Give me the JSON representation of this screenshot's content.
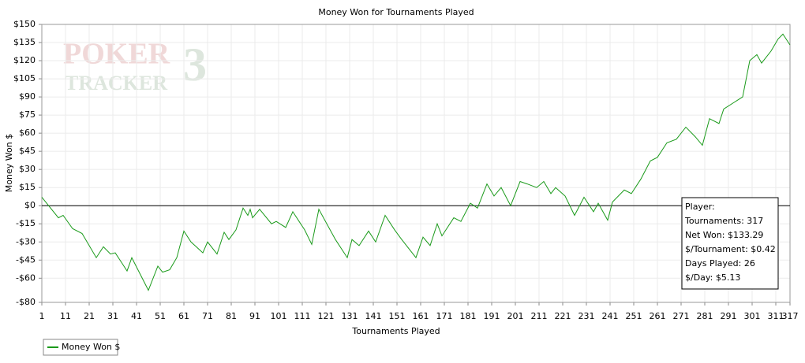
{
  "chart_data": {
    "type": "line",
    "title": "Money Won for Tournaments Played",
    "x_label": "Tournaments Played",
    "y_label": "Money Won $",
    "watermark": [
      "POKER",
      "TRACKER",
      "3"
    ],
    "xlim": [
      1,
      317
    ],
    "xticks": [
      1,
      11,
      21,
      31,
      41,
      51,
      61,
      71,
      81,
      91,
      101,
      111,
      121,
      131,
      141,
      151,
      161,
      171,
      181,
      191,
      201,
      211,
      221,
      231,
      241,
      251,
      261,
      271,
      281,
      291,
      301,
      311,
      317
    ],
    "ylim": [
      -80,
      150
    ],
    "yticks": [
      {
        "value": 150,
        "label": "$150"
      },
      {
        "value": 135,
        "label": "$135"
      },
      {
        "value": 120,
        "label": "$120"
      },
      {
        "value": 105,
        "label": "$105"
      },
      {
        "value": 90,
        "label": "$90"
      },
      {
        "value": 75,
        "label": "$75"
      },
      {
        "value": 60,
        "label": "$60"
      },
      {
        "value": 45,
        "label": "$45"
      },
      {
        "value": 30,
        "label": "$30"
      },
      {
        "value": 15,
        "label": "$15"
      },
      {
        "value": 0,
        "label": "$0"
      },
      {
        "value": -15,
        "label": "-$15"
      },
      {
        "value": -30,
        "label": "-$30"
      },
      {
        "value": -45,
        "label": "-$45"
      },
      {
        "value": -60,
        "label": "-$60"
      },
      {
        "value": -80,
        "label": "-$80"
      }
    ],
    "grid": true,
    "series": [
      {
        "name": "Money Won $",
        "color": "#1a9a1a",
        "x": [
          1,
          8,
          10,
          14,
          18,
          24,
          27,
          30,
          32,
          35,
          37,
          39,
          46,
          50,
          52,
          55,
          58,
          61,
          64,
          69,
          71,
          75,
          78,
          80,
          83,
          86,
          88,
          89,
          90,
          93,
          98,
          100,
          104,
          107,
          112,
          115,
          118,
          125,
          130,
          132,
          135,
          139,
          142,
          146,
          150,
          153,
          159,
          162,
          165,
          168,
          170,
          175,
          178,
          182,
          185,
          189,
          192,
          195,
          199,
          203,
          206,
          210,
          213,
          216,
          218,
          222,
          226,
          230,
          234,
          236,
          240,
          242,
          247,
          250,
          254,
          258,
          261,
          265,
          269,
          273,
          277,
          280,
          283,
          287,
          289,
          293,
          297,
          300,
          303,
          305,
          309,
          312,
          314,
          317
        ],
        "values": [
          7,
          -10,
          -8,
          -19,
          -23,
          -43,
          -34,
          -40,
          -39,
          -48,
          -54,
          -43,
          -70,
          -50,
          -55,
          -53,
          -43,
          -21,
          -30,
          -39,
          -30,
          -40,
          -22,
          -28,
          -20,
          -2,
          -8,
          -3,
          -10,
          -3,
          -15,
          -13,
          -18,
          -5,
          -20,
          -32,
          -3,
          -28,
          -43,
          -28,
          -33,
          -21,
          -30,
          -8,
          -20,
          -28,
          -43,
          -26,
          -33,
          -15,
          -25,
          -10,
          -13,
          2,
          -2,
          18,
          8,
          15,
          0,
          20,
          18,
          15,
          20,
          10,
          15,
          8,
          -8,
          7,
          -5,
          2,
          -12,
          3,
          13,
          10,
          22,
          37,
          40,
          52,
          55,
          65,
          57,
          50,
          72,
          68,
          80,
          85,
          90,
          120,
          125,
          118,
          128,
          138,
          142,
          133
        ]
      }
    ],
    "info_box": [
      "Player:",
      "Tournaments: 317",
      "Net Won: $133.29",
      "$/Tournament: $0.42",
      "Days Played: 26",
      "$/Day: $5.13"
    ]
  }
}
